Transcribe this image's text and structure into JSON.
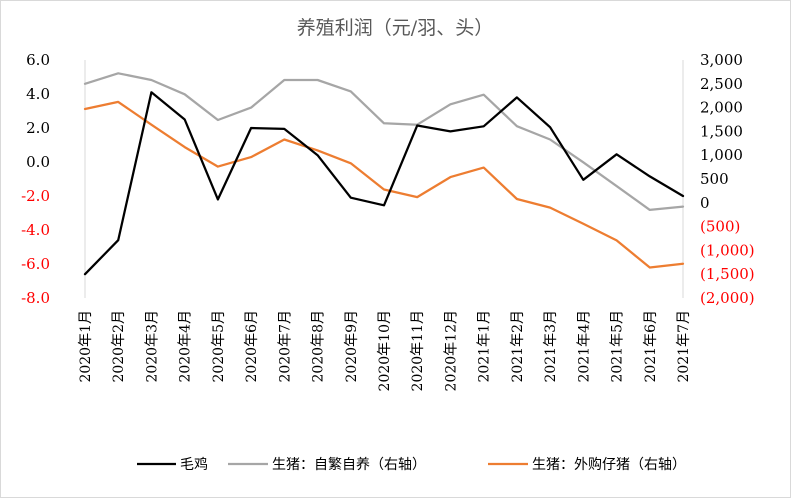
{
  "chart_data": {
    "type": "line",
    "title": "养殖利润（元/羽、头）",
    "categories": [
      "2020年1月",
      "2020年2月",
      "2020年3月",
      "2020年4月",
      "2020年5月",
      "2020年6月",
      "2020年7月",
      "2020年8月",
      "2020年9月",
      "2020年10月",
      "2020年11月",
      "2020年12月",
      "2021年1月",
      "2021年2月",
      "2021年3月",
      "2021年4月",
      "2021年5月",
      "2021年6月",
      "2021年7月"
    ],
    "left_axis": {
      "ylim": [
        -8,
        6
      ],
      "ticks": [
        6,
        4,
        2,
        0,
        -2,
        -4,
        -6,
        -8
      ],
      "tick_labels": [
        "6.0",
        "4.0",
        "2.0",
        "0.0",
        "-2.0",
        "-4.0",
        "-6.0",
        "-8.0"
      ]
    },
    "right_axis": {
      "ylim": [
        -2000,
        3000
      ],
      "ticks": [
        3000,
        2500,
        2000,
        1500,
        1000,
        500,
        0,
        -500,
        -1000,
        -1500,
        -2000
      ],
      "tick_labels": [
        "3,000",
        "2,500",
        "2,000",
        "1,500",
        "1,000",
        "500",
        "0",
        "(500)",
        "(1,000)",
        "(1,500)",
        "(2,000)"
      ]
    },
    "series": [
      {
        "name": "毛鸡",
        "axis": "left",
        "color": "#000000",
        "values": [
          -6.6,
          -4.6,
          4.1,
          2.5,
          -2.2,
          2.0,
          1.95,
          0.4,
          -2.1,
          -2.55,
          2.15,
          1.8,
          2.1,
          3.8,
          2.05,
          -1.05,
          0.45,
          -0.85,
          -2.0
        ]
      },
      {
        "name": "生猪：自繁自养（右轴）",
        "axis": "right",
        "color": "#a6a6a6",
        "values": [
          2500,
          2720,
          2580,
          2280,
          1740,
          2000,
          2580,
          2580,
          2340,
          1670,
          1640,
          2070,
          2270,
          1610,
          1330,
          850,
          350,
          -150,
          -80
        ]
      },
      {
        "name": "生猪：外购仔猪（右轴）",
        "axis": "right",
        "color": "#ed7d31",
        "values": [
          1970,
          2120,
          1640,
          1170,
          760,
          960,
          1330,
          1100,
          830,
          280,
          120,
          540,
          740,
          80,
          -100,
          -440,
          -790,
          -1360,
          -1280
        ]
      }
    ],
    "grid": false,
    "legend_position": "bottom"
  },
  "colors": {
    "left_tick_positive": "#000000",
    "left_tick_negative": "#ff0000",
    "right_tick_positive": "#000000",
    "right_tick_negative": "#ff0000",
    "axis_line": "#d9d9d9",
    "title": "#595959"
  }
}
